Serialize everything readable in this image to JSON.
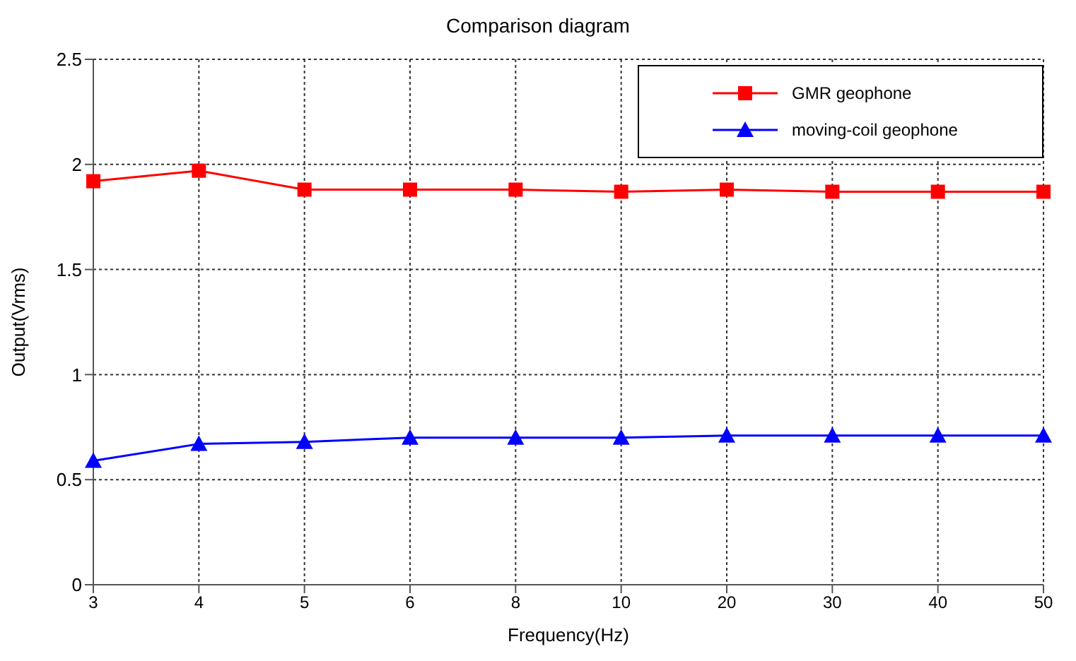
{
  "chart_data": {
    "type": "line",
    "title": "Comparison diagram",
    "xlabel": "Frequency(Hz)",
    "ylabel": "Output(Vrms)",
    "categories": [
      "3",
      "4",
      "5",
      "6",
      "8",
      "10",
      "20",
      "30",
      "40",
      "50"
    ],
    "series": [
      {
        "name": "GMR geophone",
        "color": "#ff0000",
        "marker": "square",
        "values": [
          1.92,
          1.97,
          1.88,
          1.88,
          1.88,
          1.87,
          1.88,
          1.87,
          1.87,
          1.87
        ]
      },
      {
        "name": "moving-coil geophone",
        "color": "#0000ff",
        "marker": "triangle",
        "values": [
          0.59,
          0.67,
          0.68,
          0.7,
          0.7,
          0.7,
          0.71,
          0.71,
          0.71,
          0.71
        ]
      }
    ],
    "ylim": [
      0,
      2.5
    ],
    "yticks": [
      0,
      0.5,
      1,
      1.5,
      2,
      2.5
    ],
    "grid": true,
    "legend": "top right",
    "line_style": "solid"
  }
}
